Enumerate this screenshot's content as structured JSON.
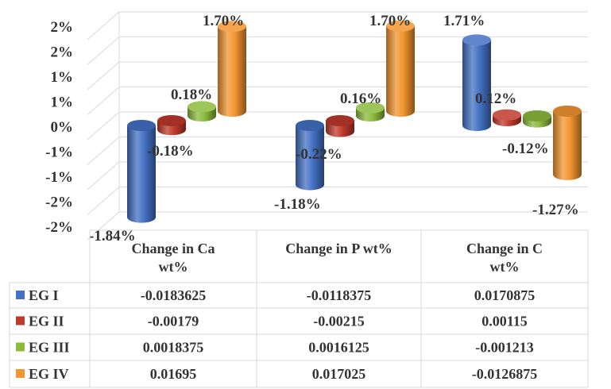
{
  "chart_data": {
    "type": "bar",
    "subtype": "3d-cylinder-with-data-table",
    "title": "",
    "xlabel": "",
    "ylabel": "",
    "ylim": [
      -0.02,
      0.02
    ],
    "y_ticks": [
      "2%",
      "2%",
      "1%",
      "1%",
      "0%",
      "-1%",
      "-1%",
      "-2%",
      "-2%"
    ],
    "y_tick_values": [
      0.02,
      0.015,
      0.01,
      0.005,
      0,
      -0.005,
      -0.01,
      -0.015,
      -0.02
    ],
    "grid": true,
    "legend": "in-table-left",
    "categories": [
      "Change in Ca wt%",
      "Change in P wt%",
      "Change in C wt%"
    ],
    "series": [
      {
        "name": "EG I",
        "color": "#4472c4",
        "values": [
          -0.0183625,
          -0.0118375,
          0.0170875
        ],
        "table_values": [
          "-0.0183625",
          "-0.0118375",
          "0.0170875"
        ],
        "data_labels": [
          "-1.84%",
          "-1.18%",
          "1.71%"
        ]
      },
      {
        "name": "EG II",
        "color": "#c0392b",
        "values": [
          -0.00179,
          -0.00215,
          0.00115
        ],
        "table_values": [
          "-0.00179",
          "-0.00215",
          "0.00115"
        ],
        "data_labels": [
          "-0.18%",
          "-0.22%",
          "0.12%"
        ]
      },
      {
        "name": "EG III",
        "color": "#8cbb3c",
        "values": [
          0.0018375,
          0.0016125,
          -0.001213
        ],
        "table_values": [
          "0.0018375",
          "0.0016125",
          "-0.001213"
        ],
        "data_labels": [
          "0.18%",
          "0.16%",
          "-0.12%"
        ]
      },
      {
        "name": "EG IV",
        "color": "#f39530",
        "values": [
          0.01695,
          0.017025,
          -0.0126875
        ],
        "table_values": [
          "0.01695",
          "0.017025",
          "-0.0126875"
        ],
        "data_labels": [
          "1.70%",
          "1.70%",
          "-1.27%"
        ]
      }
    ]
  }
}
